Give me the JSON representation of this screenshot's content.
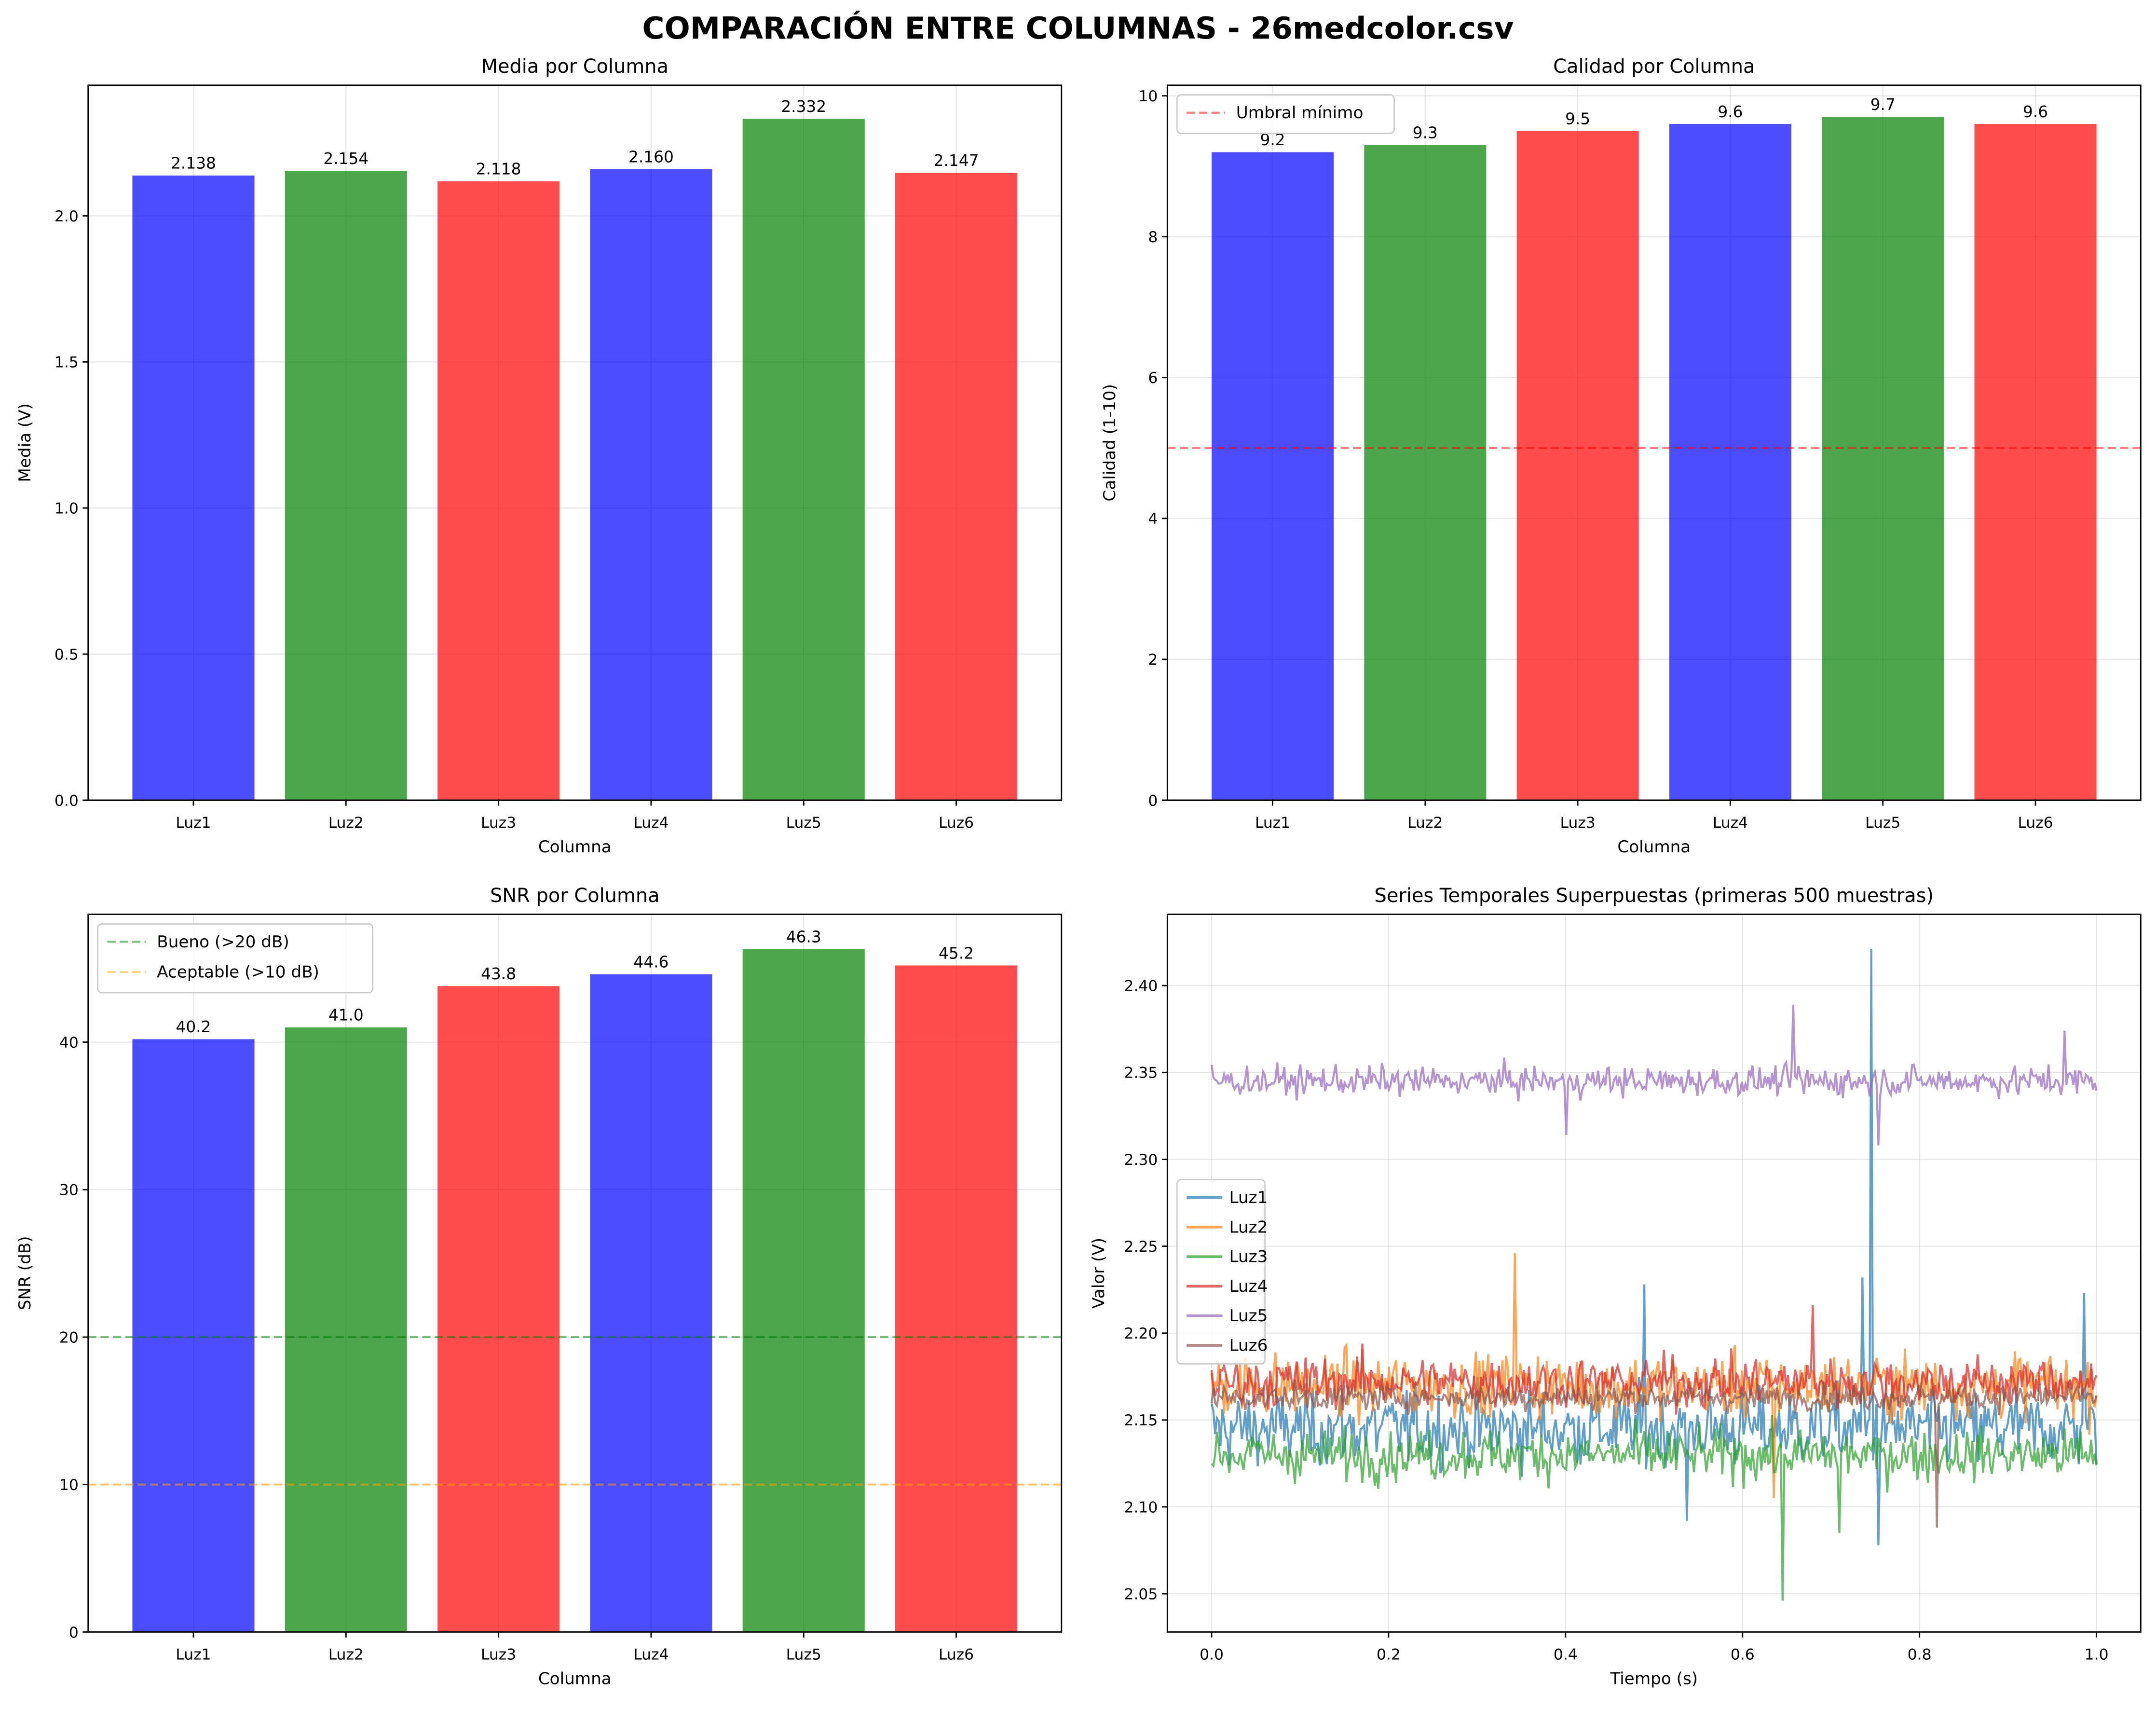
{
  "title": "COMPARACIÓN ENTRE COLUMNAS - 26medcolor.csv",
  "colors": {
    "blue": "#0000ff",
    "green": "#008000",
    "red": "#ff0000",
    "bar_alpha": 0.7
  },
  "chart_data": [
    {
      "type": "bar",
      "title": "Media por Columna",
      "xlabel": "Columna",
      "ylabel": "Media (V)",
      "categories": [
        "Luz1",
        "Luz2",
        "Luz3",
        "Luz4",
        "Luz5",
        "Luz6"
      ],
      "values": [
        2.138,
        2.154,
        2.118,
        2.16,
        2.332,
        2.147
      ],
      "labels": [
        "2.138",
        "2.154",
        "2.118",
        "2.160",
        "2.332",
        "2.147"
      ],
      "bar_colors": [
        "#0000ff",
        "#008000",
        "#ff0000",
        "#0000ff",
        "#008000",
        "#ff0000"
      ],
      "ylim": [
        0,
        2.447
      ],
      "yticks": [
        0.0,
        0.5,
        1.0,
        1.5,
        2.0
      ],
      "ytick_labels": [
        "0.0",
        "0.5",
        "1.0",
        "1.5",
        "2.0"
      ],
      "grid": true
    },
    {
      "type": "bar",
      "title": "Calidad por Columna",
      "xlabel": "Columna",
      "ylabel": "Calidad (1-10)",
      "categories": [
        "Luz1",
        "Luz2",
        "Luz3",
        "Luz4",
        "Luz5",
        "Luz6"
      ],
      "values": [
        9.2,
        9.3,
        9.5,
        9.6,
        9.7,
        9.6
      ],
      "labels": [
        "9.2",
        "9.3",
        "9.5",
        "9.6",
        "9.7",
        "9.6"
      ],
      "bar_colors": [
        "#0000ff",
        "#008000",
        "#ff0000",
        "#0000ff",
        "#008000",
        "#ff0000"
      ],
      "ylim": [
        0,
        10.15
      ],
      "yticks": [
        0,
        2,
        4,
        6,
        8,
        10
      ],
      "ytick_labels": [
        "0",
        "2",
        "4",
        "6",
        "8",
        "10"
      ],
      "hlines": [
        {
          "y": 5,
          "color": "#ff0000",
          "label": "Umbral mínimo"
        }
      ],
      "legend": "top-left",
      "grid": true
    },
    {
      "type": "bar",
      "title": "SNR por Columna",
      "xlabel": "Columna",
      "ylabel": "SNR (dB)",
      "categories": [
        "Luz1",
        "Luz2",
        "Luz3",
        "Luz4",
        "Luz5",
        "Luz6"
      ],
      "values": [
        40.2,
        41.0,
        43.8,
        44.6,
        46.3,
        45.2
      ],
      "labels": [
        "40.2",
        "41.0",
        "43.8",
        "44.6",
        "46.3",
        "45.2"
      ],
      "bar_colors": [
        "#0000ff",
        "#008000",
        "#ff0000",
        "#0000ff",
        "#008000",
        "#ff0000"
      ],
      "ylim": [
        0,
        48.67
      ],
      "yticks": [
        0,
        10,
        20,
        30,
        40
      ],
      "ytick_labels": [
        "0",
        "10",
        "20",
        "30",
        "40"
      ],
      "hlines": [
        {
          "y": 20,
          "color": "#008000",
          "label": "Bueno (>20 dB)"
        },
        {
          "y": 10,
          "color": "#ffa500",
          "label": "Aceptable (>10 dB)"
        }
      ],
      "legend": "top-left",
      "grid": true
    },
    {
      "type": "line",
      "title": "Series Temporales Superpuestas (primeras 500 muestras)",
      "xlabel": "Tiempo (s)",
      "ylabel": "Valor (V)",
      "xlim": [
        -0.05,
        1.05
      ],
      "ylim": [
        2.028,
        2.441
      ],
      "xticks": [
        0.0,
        0.2,
        0.4,
        0.6,
        0.8,
        1.0
      ],
      "xtick_labels": [
        "0.0",
        "0.2",
        "0.4",
        "0.6",
        "0.8",
        "1.0"
      ],
      "yticks": [
        2.05,
        2.1,
        2.15,
        2.2,
        2.25,
        2.3,
        2.35,
        2.4
      ],
      "ytick_labels": [
        "2.05",
        "2.10",
        "2.15",
        "2.20",
        "2.25",
        "2.30",
        "2.35",
        "2.40"
      ],
      "n_samples": 500,
      "legend": "center-left",
      "grid": true,
      "series": [
        {
          "name": "Luz1",
          "color": "#1f77b4",
          "mean": 2.145,
          "noise": 0.018,
          "spikes": [
            [
              0.745,
              2.421
            ],
            [
              0.735,
              2.232
            ],
            [
              0.488,
              2.228
            ],
            [
              0.754,
              2.078
            ],
            [
              0.985,
              2.223
            ],
            [
              0.538,
              2.092
            ]
          ]
        },
        {
          "name": "Luz2",
          "color": "#ff7f0e",
          "mean": 2.17,
          "noise": 0.015,
          "spikes": [
            [
              0.343,
              2.246
            ],
            [
              0.636,
              2.105
            ]
          ]
        },
        {
          "name": "Luz3",
          "color": "#2ca02c",
          "mean": 2.13,
          "noise": 0.012,
          "spikes": [
            [
              0.645,
              2.046
            ],
            [
              0.709,
              2.085
            ]
          ]
        },
        {
          "name": "Luz4",
          "color": "#d62728",
          "mean": 2.172,
          "noise": 0.012,
          "spikes": [
            [
              0.68,
              2.216
            ]
          ]
        },
        {
          "name": "Luz5",
          "color": "#9467bd",
          "mean": 2.345,
          "noise": 0.007,
          "spikes": [
            [
              0.657,
              2.389
            ],
            [
              0.4,
              2.314
            ],
            [
              0.753,
              2.308
            ],
            [
              0.963,
              2.374
            ]
          ]
        },
        {
          "name": "Luz6",
          "color": "#8c564b",
          "mean": 2.163,
          "noise": 0.006,
          "spikes": [
            [
              0.82,
              2.088
            ]
          ]
        }
      ]
    }
  ]
}
